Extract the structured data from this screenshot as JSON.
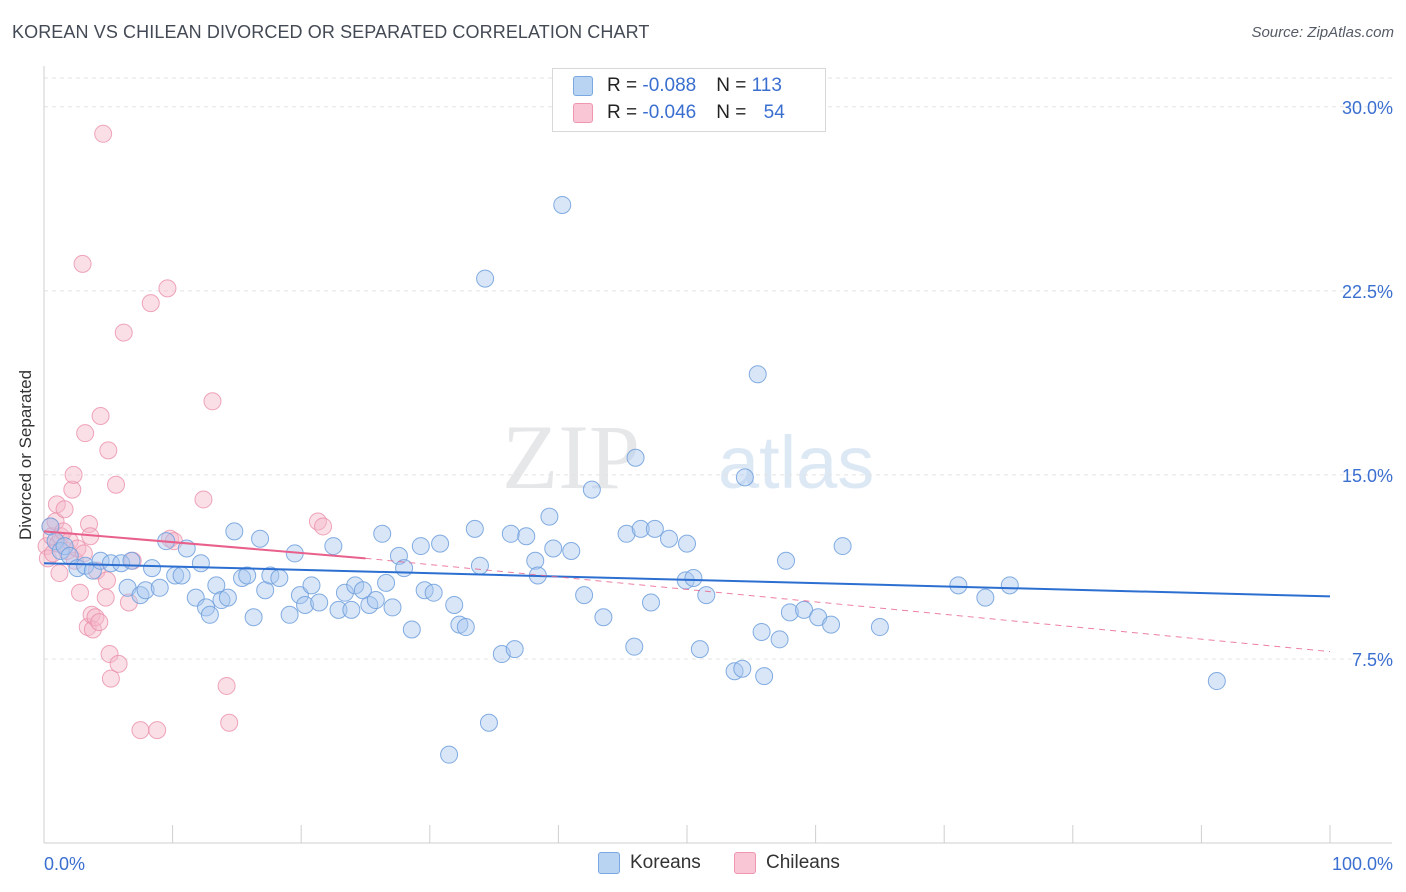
{
  "header": {
    "title": "KOREAN VS CHILEAN DIVORCED OR SEPARATED CORRELATION CHART",
    "source": "Source: ZipAtlas.com"
  },
  "legend": {
    "koreans": {
      "r_label": "R = ",
      "r_value": "-0.088",
      "n_label": "N = ",
      "n_value": "113"
    },
    "chileans": {
      "r_label": "R = ",
      "r_value": "-0.046",
      "n_label": "N = ",
      "n_value": "54"
    }
  },
  "bottom_legend": {
    "koreans": "Koreans",
    "chileans": "Chileans"
  },
  "watermark": {
    "zip": "ZIP",
    "atlas": "atlas"
  },
  "colors": {
    "blue_fill": "#a9c8ef",
    "blue_stroke": "#6f9fdc",
    "blue_line": "#2c6fd1",
    "pink_fill": "#f5b8c9",
    "pink_stroke": "#ea8aa6",
    "pink_line": "#e8608b",
    "axis_text": "#3a6fd0",
    "grid": "#e3e3e3"
  },
  "chart_data": {
    "type": "scatter",
    "title": "KOREAN VS CHILEAN DIVORCED OR SEPARATED CORRELATION CHART",
    "xlabel": "",
    "ylabel": "Divorced or Separated",
    "xlim": [
      0,
      100
    ],
    "ylim": [
      0,
      31.5
    ],
    "x_tick_labels": [
      "0.0%",
      "100.0%"
    ],
    "y_ticks": [
      7.5,
      15.0,
      22.5,
      30.0
    ],
    "y_tick_labels": [
      "7.5%",
      "15.0%",
      "22.5%",
      "30.0%"
    ],
    "series": [
      {
        "name": "Koreans",
        "r": -0.088,
        "n": 113,
        "trend": {
          "x": [
            0,
            100
          ],
          "y": [
            11.4,
            10.05
          ]
        },
        "points": [
          [
            0.5,
            12.9
          ],
          [
            0.9,
            12.3
          ],
          [
            1.3,
            11.9
          ],
          [
            1.6,
            12.1
          ],
          [
            2.0,
            11.7
          ],
          [
            2.6,
            11.2
          ],
          [
            3.2,
            11.3
          ],
          [
            3.8,
            11.1
          ],
          [
            4.4,
            11.5
          ],
          [
            5.2,
            11.4
          ],
          [
            6.0,
            11.4
          ],
          [
            6.5,
            10.4
          ],
          [
            6.8,
            11.5
          ],
          [
            7.5,
            10.1
          ],
          [
            7.9,
            10.3
          ],
          [
            8.4,
            11.2
          ],
          [
            9.0,
            10.4
          ],
          [
            9.5,
            12.3
          ],
          [
            10.2,
            10.9
          ],
          [
            10.7,
            10.9
          ],
          [
            11.1,
            12.0
          ],
          [
            11.8,
            10.0
          ],
          [
            12.2,
            11.4
          ],
          [
            12.6,
            9.6
          ],
          [
            12.9,
            9.3
          ],
          [
            13.4,
            10.5
          ],
          [
            13.8,
            9.9
          ],
          [
            14.3,
            10.0
          ],
          [
            14.8,
            12.7
          ],
          [
            15.4,
            10.8
          ],
          [
            15.8,
            10.9
          ],
          [
            16.3,
            9.2
          ],
          [
            16.8,
            12.4
          ],
          [
            17.2,
            10.3
          ],
          [
            17.6,
            10.9
          ],
          [
            18.3,
            10.8
          ],
          [
            19.1,
            9.3
          ],
          [
            19.5,
            11.8
          ],
          [
            19.9,
            10.1
          ],
          [
            20.3,
            9.7
          ],
          [
            20.8,
            10.5
          ],
          [
            21.4,
            9.8
          ],
          [
            22.5,
            12.1
          ],
          [
            22.9,
            9.5
          ],
          [
            23.4,
            10.2
          ],
          [
            23.9,
            9.5
          ],
          [
            24.2,
            10.5
          ],
          [
            24.8,
            10.3
          ],
          [
            25.3,
            9.7
          ],
          [
            25.8,
            9.9
          ],
          [
            26.3,
            12.6
          ],
          [
            26.6,
            10.6
          ],
          [
            27.1,
            9.6
          ],
          [
            27.6,
            11.7
          ],
          [
            28.0,
            11.2
          ],
          [
            28.6,
            8.7
          ],
          [
            29.3,
            12.1
          ],
          [
            29.6,
            10.3
          ],
          [
            30.3,
            10.2
          ],
          [
            30.8,
            12.2
          ],
          [
            31.5,
            3.6
          ],
          [
            31.9,
            9.7
          ],
          [
            32.3,
            8.9
          ],
          [
            32.8,
            8.8
          ],
          [
            33.5,
            12.8
          ],
          [
            33.9,
            11.3
          ],
          [
            34.3,
            23.0
          ],
          [
            34.6,
            4.9
          ],
          [
            35.6,
            7.7
          ],
          [
            36.3,
            12.6
          ],
          [
            36.6,
            7.9
          ],
          [
            37.5,
            12.5
          ],
          [
            38.2,
            11.5
          ],
          [
            38.4,
            10.9
          ],
          [
            39.3,
            13.3
          ],
          [
            39.6,
            12.0
          ],
          [
            40.3,
            26.0
          ],
          [
            41.0,
            11.9
          ],
          [
            42.0,
            10.1
          ],
          [
            42.6,
            14.4
          ],
          [
            43.5,
            9.2
          ],
          [
            45.3,
            12.6
          ],
          [
            45.9,
            8.0
          ],
          [
            46.0,
            15.7
          ],
          [
            46.4,
            12.8
          ],
          [
            47.2,
            9.8
          ],
          [
            47.5,
            12.8
          ],
          [
            48.6,
            12.4
          ],
          [
            49.9,
            10.7
          ],
          [
            50.0,
            12.2
          ],
          [
            50.5,
            10.8
          ],
          [
            51.0,
            7.9
          ],
          [
            51.5,
            10.1
          ],
          [
            53.7,
            7.0
          ],
          [
            54.3,
            7.1
          ],
          [
            54.5,
            14.9
          ],
          [
            55.5,
            19.1
          ],
          [
            55.8,
            8.6
          ],
          [
            56.0,
            6.8
          ],
          [
            57.2,
            8.3
          ],
          [
            57.7,
            11.5
          ],
          [
            58.0,
            9.4
          ],
          [
            59.1,
            9.5
          ],
          [
            60.2,
            9.2
          ],
          [
            61.2,
            8.9
          ],
          [
            62.1,
            12.1
          ],
          [
            65.0,
            8.8
          ],
          [
            71.1,
            10.5
          ],
          [
            73.2,
            10.0
          ],
          [
            75.1,
            10.5
          ],
          [
            91.2,
            6.6
          ]
        ]
      },
      {
        "name": "Chileans",
        "r": -0.046,
        "n": 54,
        "trend_solid": {
          "x": [
            0,
            25
          ],
          "y": [
            12.7,
            11.6
          ]
        },
        "trend_dashed": {
          "x": [
            25,
            100
          ],
          "y": [
            11.6,
            7.8
          ]
        },
        "points": [
          [
            0.2,
            12.1
          ],
          [
            0.3,
            11.6
          ],
          [
            0.5,
            12.9
          ],
          [
            0.6,
            12.5
          ],
          [
            0.7,
            11.8
          ],
          [
            0.9,
            13.1
          ],
          [
            1.0,
            13.8
          ],
          [
            1.1,
            12.2
          ],
          [
            1.2,
            11.0
          ],
          [
            1.3,
            12.5
          ],
          [
            1.5,
            12.7
          ],
          [
            1.6,
            13.6
          ],
          [
            1.8,
            11.9
          ],
          [
            2.0,
            12.3
          ],
          [
            2.2,
            14.4
          ],
          [
            2.3,
            15.0
          ],
          [
            2.4,
            11.5
          ],
          [
            2.6,
            12.0
          ],
          [
            2.8,
            10.2
          ],
          [
            3.0,
            23.6
          ],
          [
            3.1,
            11.8
          ],
          [
            3.2,
            16.7
          ],
          [
            3.4,
            8.8
          ],
          [
            3.5,
            13.0
          ],
          [
            3.6,
            12.5
          ],
          [
            3.7,
            9.3
          ],
          [
            3.8,
            8.7
          ],
          [
            4.0,
            9.2
          ],
          [
            4.1,
            11.1
          ],
          [
            4.3,
            9.0
          ],
          [
            4.4,
            17.4
          ],
          [
            4.6,
            28.9
          ],
          [
            4.8,
            10.0
          ],
          [
            4.9,
            10.7
          ],
          [
            5.0,
            16.0
          ],
          [
            5.1,
            7.7
          ],
          [
            5.2,
            6.7
          ],
          [
            5.6,
            14.6
          ],
          [
            5.8,
            7.3
          ],
          [
            6.2,
            20.8
          ],
          [
            6.6,
            9.8
          ],
          [
            6.9,
            11.5
          ],
          [
            7.5,
            4.6
          ],
          [
            8.3,
            22.0
          ],
          [
            8.8,
            4.6
          ],
          [
            9.6,
            22.6
          ],
          [
            9.8,
            12.4
          ],
          [
            10.1,
            12.3
          ],
          [
            12.4,
            14.0
          ],
          [
            13.1,
            18.0
          ],
          [
            14.2,
            6.4
          ],
          [
            14.4,
            4.9
          ],
          [
            21.3,
            13.1
          ],
          [
            21.7,
            12.9
          ]
        ]
      }
    ]
  }
}
